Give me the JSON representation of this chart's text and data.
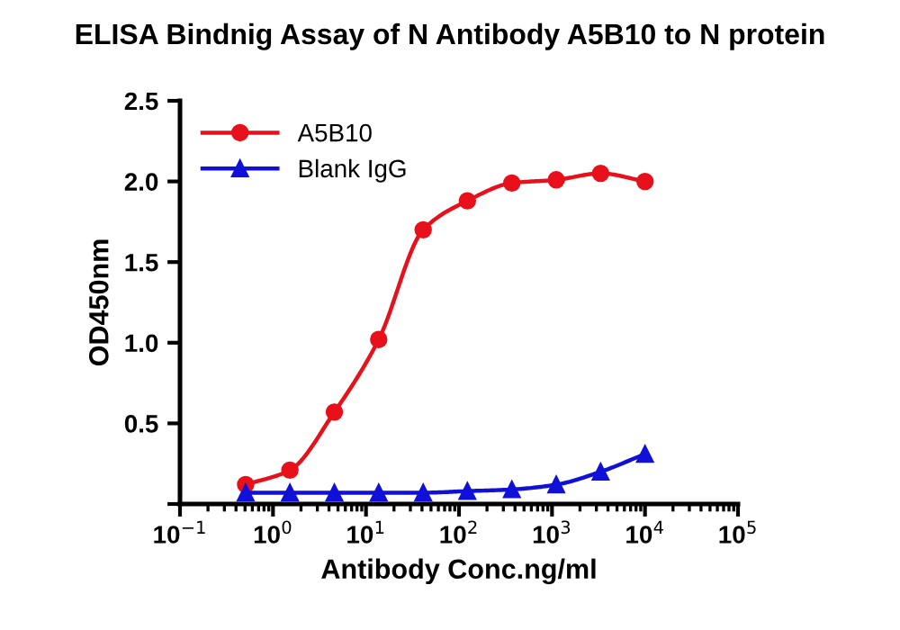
{
  "chart_data": {
    "type": "line",
    "title": "ELISA Bindnig Assay of N Antibody A5B10 to N protein",
    "xlabel": "Antibody Conc.ng/ml",
    "ylabel": "OD450nm",
    "x": [
      0.508,
      1.52,
      4.57,
      13.7,
      41.2,
      123,
      370,
      1111,
      3333,
      10000
    ],
    "series": [
      {
        "name": "A5B10",
        "color": "#e8101a",
        "marker": "circle",
        "values": [
          0.12,
          0.21,
          0.57,
          1.02,
          1.7,
          1.88,
          1.99,
          2.01,
          2.05,
          2.0
        ]
      },
      {
        "name": "Blank IgG",
        "color": "#1010d8",
        "marker": "triangle",
        "values": [
          0.07,
          0.07,
          0.07,
          0.07,
          0.07,
          0.08,
          0.09,
          0.12,
          0.2,
          0.31
        ]
      }
    ],
    "log": "x",
    "xlim": [
      0.1,
      100000
    ],
    "xticks": [
      {
        "value": 0.1,
        "label": "10$^{−1}$"
      },
      {
        "value": 1,
        "label": "10$^{0}$"
      },
      {
        "value": 10,
        "label": "10$^{1}$"
      },
      {
        "value": 100,
        "label": "10$^{2}$"
      },
      {
        "value": 1000,
        "label": "10$^{3}$"
      },
      {
        "value": 10000,
        "label": "10$^{4}$"
      },
      {
        "value": 100000,
        "label": "10$^{5}$"
      }
    ],
    "ylim": [
      0,
      2.5
    ],
    "yticks": [
      {
        "value": 0,
        "label": null
      },
      0.5,
      {
        "value": 1,
        "label": "1.0"
      },
      1.5,
      {
        "value": 2,
        "label": "2.0"
      },
      2.5
    ],
    "grid": false,
    "legend": "top left",
    "line_style": "solid"
  }
}
